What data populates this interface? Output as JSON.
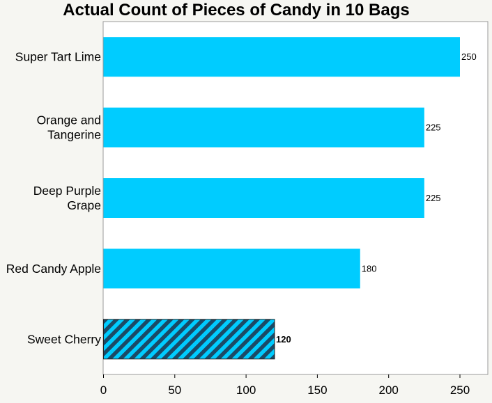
{
  "chart_data": {
    "type": "bar",
    "orientation": "horizontal",
    "title": "Actual Count of Pieces of Candy in 10 Bags",
    "xlabel": "",
    "ylabel": "",
    "categories": [
      [
        "Super Tart Lime"
      ],
      [
        "Orange and",
        "Tangerine"
      ],
      [
        "Deep Purple",
        "Grape"
      ],
      [
        "Red Candy Apple"
      ],
      [
        "Sweet Cherry"
      ]
    ],
    "values": [
      250,
      225,
      225,
      180,
      120
    ],
    "highlighted": [
      false,
      false,
      false,
      false,
      true
    ],
    "value_labels": [
      "250",
      "225",
      "225",
      "180",
      "120"
    ],
    "xlim": [
      0,
      270
    ],
    "xticks": [
      0,
      50,
      100,
      150,
      200,
      250
    ],
    "grid": false,
    "colors": {
      "bar": "#00ccff",
      "hatch": "#1b4a66",
      "background": "#f6f6f2",
      "plot_background": "#ffffff",
      "axis": "#999999"
    }
  }
}
